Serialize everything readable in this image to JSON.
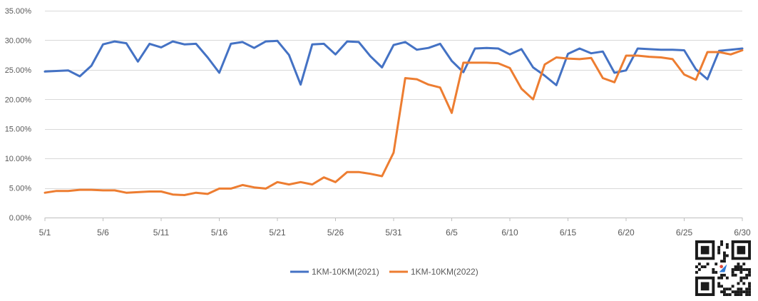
{
  "chart_data": {
    "type": "line",
    "title": "",
    "xlabel": "",
    "ylabel": "",
    "ylim": [
      0,
      0.35
    ],
    "yticks": [
      0,
      0.05,
      0.1,
      0.15,
      0.2,
      0.25,
      0.3,
      0.35
    ],
    "ytick_labels": [
      "0.00%",
      "5.00%",
      "10.00%",
      "15.00%",
      "20.00%",
      "25.00%",
      "30.00%",
      "35.00%"
    ],
    "x": [
      "5/1",
      "5/2",
      "5/3",
      "5/4",
      "5/5",
      "5/6",
      "5/7",
      "5/8",
      "5/9",
      "5/10",
      "5/11",
      "5/12",
      "5/13",
      "5/14",
      "5/15",
      "5/16",
      "5/17",
      "5/18",
      "5/19",
      "5/20",
      "5/21",
      "5/22",
      "5/23",
      "5/24",
      "5/25",
      "5/26",
      "5/27",
      "5/28",
      "5/29",
      "5/30",
      "5/31",
      "6/1",
      "6/2",
      "6/3",
      "6/4",
      "6/5",
      "6/6",
      "6/7",
      "6/8",
      "6/9",
      "6/10",
      "6/11",
      "6/12",
      "6/13",
      "6/14",
      "6/15",
      "6/16",
      "6/17",
      "6/18",
      "6/19",
      "6/20",
      "6/21",
      "6/22",
      "6/23",
      "6/24",
      "6/25",
      "6/26",
      "6/27",
      "6/28",
      "6/29",
      "6/30"
    ],
    "xtick_labels": [
      "5/1",
      "5/6",
      "5/11",
      "5/16",
      "5/21",
      "5/26",
      "5/31",
      "6/5",
      "6/10",
      "6/15",
      "6/20",
      "6/25",
      "6/30"
    ],
    "grid": true,
    "legend": "bottom-center",
    "series": [
      {
        "name": "1KM-10KM(2021)",
        "color": "#4472C4",
        "values": [
          0.247,
          0.248,
          0.249,
          0.239,
          0.257,
          0.293,
          0.298,
          0.295,
          0.264,
          0.294,
          0.288,
          0.298,
          0.293,
          0.294,
          0.271,
          0.245,
          0.294,
          0.297,
          0.287,
          0.298,
          0.299,
          0.275,
          0.225,
          0.293,
          0.294,
          0.276,
          0.298,
          0.297,
          0.273,
          0.254,
          0.292,
          0.297,
          0.284,
          0.287,
          0.294,
          0.265,
          0.246,
          0.286,
          0.287,
          0.286,
          0.276,
          0.285,
          0.254,
          0.24,
          0.224,
          0.277,
          0.286,
          0.278,
          0.281,
          0.245,
          0.249,
          0.286,
          0.285,
          0.284,
          0.284,
          0.283,
          0.251,
          0.234,
          0.282,
          0.284,
          0.286
        ]
      },
      {
        "name": "1KM-10KM(2022)",
        "color": "#ED7D31",
        "values": [
          0.042,
          0.045,
          0.045,
          0.047,
          0.047,
          0.046,
          0.046,
          0.042,
          0.043,
          0.044,
          0.044,
          0.039,
          0.038,
          0.042,
          0.04,
          0.049,
          0.049,
          0.055,
          0.051,
          0.049,
          0.06,
          0.056,
          0.06,
          0.056,
          0.068,
          0.06,
          0.077,
          0.077,
          0.074,
          0.07,
          0.11,
          0.236,
          0.234,
          0.225,
          0.22,
          0.177,
          0.262,
          0.262,
          0.262,
          0.261,
          0.253,
          0.218,
          0.2,
          0.259,
          0.271,
          0.269,
          0.268,
          0.27,
          0.236,
          0.229,
          0.274,
          0.274,
          0.272,
          0.271,
          0.268,
          0.242,
          0.233,
          0.28,
          0.28,
          0.276,
          0.283
        ]
      }
    ]
  }
}
